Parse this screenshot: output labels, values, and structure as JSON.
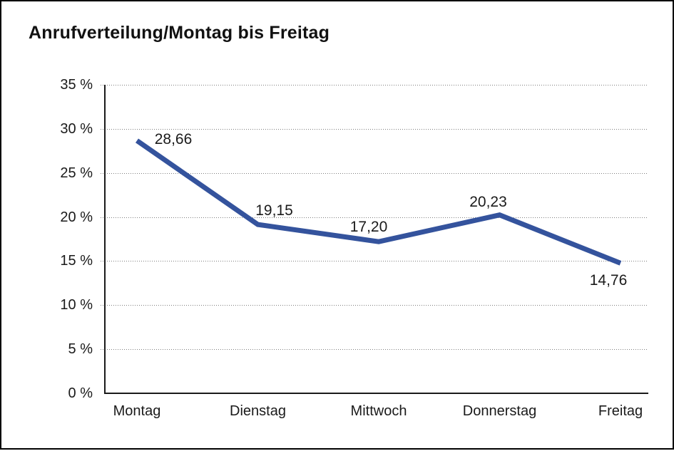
{
  "chart_data": {
    "type": "line",
    "title": "Anrufverteilung/Montag bis Freitag",
    "categories": [
      "Montag",
      "Dienstag",
      "Mittwoch",
      "Donnerstag",
      "Freitag"
    ],
    "values": [
      28.66,
      19.15,
      17.2,
      20.23,
      14.76
    ],
    "value_labels": [
      "28,66",
      "19,15",
      "17,20",
      "20,23",
      "14,76"
    ],
    "xlabel": "",
    "ylabel": "",
    "ylim": [
      0,
      35
    ],
    "y_tick_step": 5,
    "y_tick_suffix": " %",
    "y_tick_labels": [
      "0 %",
      "5 %",
      "10 %",
      "15 %",
      "20 %",
      "25 %",
      "30 %",
      "35 %"
    ],
    "grid": "horizontal-dotted",
    "legend_position": "none",
    "line_color": "#34539D",
    "axis_color": "#1a1a1a",
    "grid_color": "#7d7d7d"
  }
}
